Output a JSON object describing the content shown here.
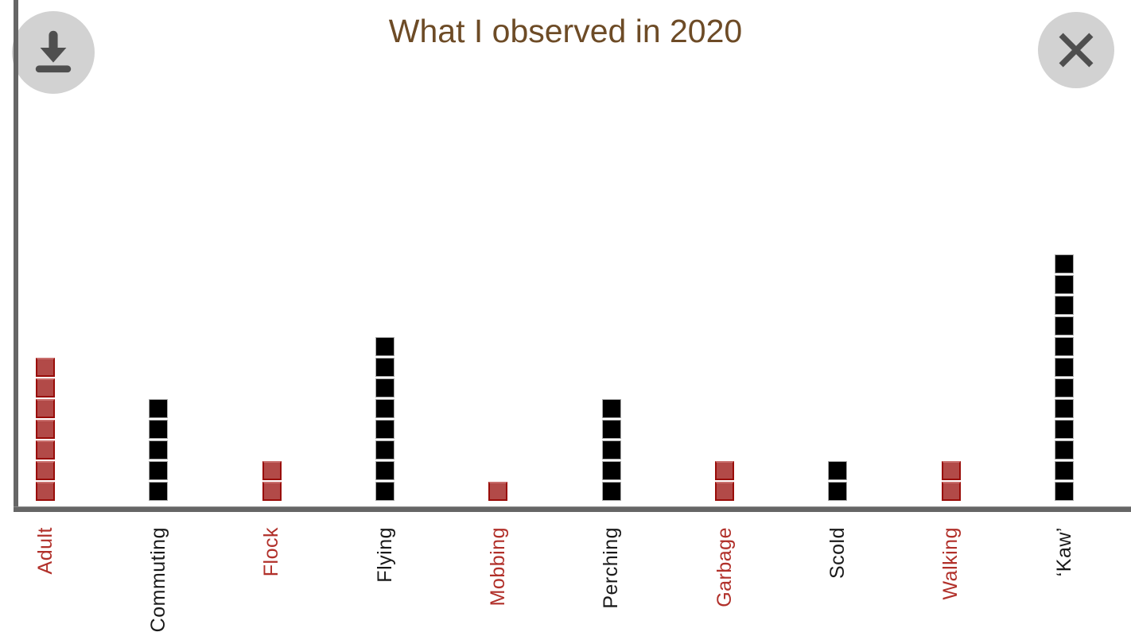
{
  "header": {
    "title": "What I observed in 2020",
    "buttons": {
      "download": {
        "icon": "download-icon"
      },
      "close": {
        "icon": "close-icon"
      }
    }
  },
  "chart_data": {
    "type": "bar",
    "subtype": "pictograph-waffle-columns",
    "title": "What I observed in 2020",
    "orientation": "vertical",
    "xlabel": "",
    "ylabel": "",
    "grid": false,
    "legend": false,
    "ylim": [
      0,
      12
    ],
    "categories": [
      "Adult",
      "Commuting",
      "Flock",
      "Flying",
      "Mobbing",
      "Perching",
      "Garbage",
      "Scold",
      "Walking",
      "‘Kaw’"
    ],
    "values": [
      7,
      5,
      2,
      8,
      1,
      5,
      2,
      2,
      2,
      12
    ],
    "category_colors": [
      "red",
      "black",
      "red",
      "black",
      "red",
      "black",
      "red",
      "black",
      "red",
      "black"
    ],
    "label_rotation_deg": 90,
    "palette": {
      "red_square": "#b24a48",
      "red_square_border": "#990d09",
      "black_square": "#000000",
      "black_square_border": "#a9a9a9",
      "red_label": "#b1302a",
      "black_label": "#1a1a1a",
      "axis": "#666666",
      "title": "#6d4b26",
      "background": "#ffffff"
    }
  }
}
